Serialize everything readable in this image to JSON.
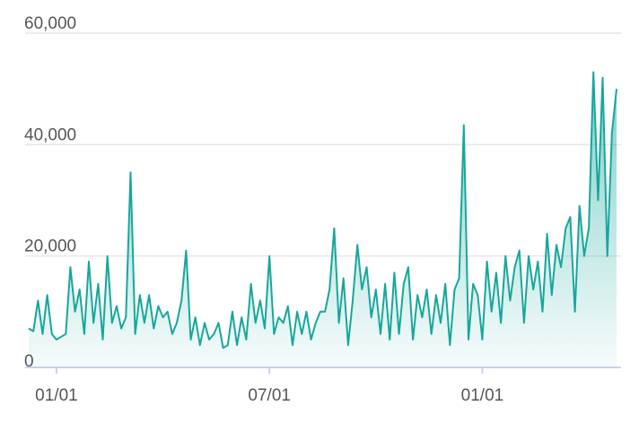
{
  "chart_data": {
    "type": "area",
    "categories": [
      null,
      null,
      null,
      null,
      null,
      null,
      "01/01",
      null,
      null,
      null,
      null,
      null,
      null,
      null,
      null,
      null,
      null,
      null,
      null,
      null,
      null,
      null,
      null,
      null,
      null,
      null,
      null,
      null,
      null,
      null,
      null,
      null,
      null,
      null,
      null,
      null,
      null,
      null,
      null,
      null,
      null,
      null,
      null,
      null,
      null,
      null,
      null,
      null,
      null,
      null,
      null,
      null,
      "07/01",
      null,
      null,
      null,
      null,
      null,
      null,
      null,
      null,
      null,
      null,
      null,
      null,
      null,
      null,
      null,
      null,
      null,
      null,
      null,
      null,
      null,
      null,
      null,
      null,
      null,
      null,
      null,
      null,
      null,
      null,
      null,
      null,
      null,
      null,
      null,
      null,
      null,
      null,
      null,
      null,
      null,
      null,
      null,
      null,
      null,
      "01/01",
      null,
      null,
      null,
      null,
      null,
      null,
      null,
      null,
      null,
      null,
      null,
      null,
      null,
      null,
      null,
      null,
      null,
      null,
      null,
      null,
      null,
      null,
      null,
      null,
      null,
      null,
      null,
      null,
      null
    ],
    "values": [
      7000,
      6500,
      12000,
      6000,
      13000,
      6000,
      5000,
      5500,
      6000,
      18000,
      10000,
      14000,
      6000,
      19000,
      8000,
      15000,
      5000,
      20000,
      8000,
      11000,
      7000,
      9000,
      35000,
      6000,
      13000,
      8000,
      13000,
      7000,
      11000,
      9000,
      10000,
      6000,
      8000,
      12000,
      21000,
      5000,
      9000,
      4000,
      8000,
      5000,
      6000,
      8000,
      3500,
      4000,
      10000,
      4000,
      9000,
      5000,
      15000,
      8000,
      12000,
      7000,
      20000,
      6000,
      9000,
      8000,
      11000,
      4000,
      10000,
      6000,
      10000,
      5000,
      8000,
      10000,
      10000,
      14000,
      25000,
      8000,
      16000,
      4000,
      12000,
      22000,
      14000,
      18000,
      9000,
      14000,
      6000,
      15000,
      5000,
      17000,
      6000,
      15000,
      18000,
      5000,
      13000,
      9000,
      14000,
      6000,
      13000,
      8000,
      15000,
      4000,
      14000,
      16000,
      43500,
      5000,
      15000,
      13000,
      5000,
      19000,
      10000,
      17000,
      8000,
      20000,
      12000,
      18000,
      21000,
      8000,
      20000,
      14000,
      19000,
      10000,
      24000,
      13000,
      22000,
      18000,
      25000,
      27000,
      10000,
      29000,
      20000,
      25000,
      53000,
      30000,
      52000,
      20000,
      42000,
      50000
    ],
    "color": "#17a79c",
    "ylim": [
      0,
      60000
    ],
    "yticks": [
      0,
      {
        "value": 20000,
        "label": "20,000"
      },
      {
        "value": 40000,
        "label": "40,000"
      },
      {
        "value": 60000,
        "label": "60,000"
      }
    ],
    "grid": true
  }
}
